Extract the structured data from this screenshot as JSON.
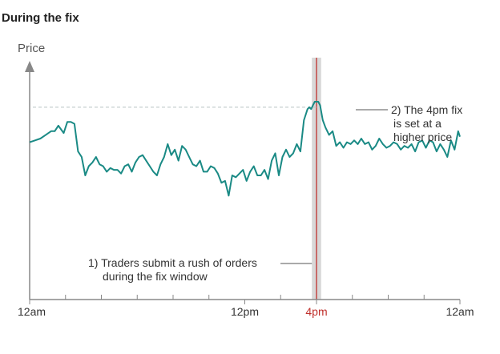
{
  "title": "During the fix",
  "chart_data": {
    "type": "line",
    "ylabel": "Price",
    "xlabel": "",
    "grid": false,
    "x_ticks": [
      {
        "label": "12am",
        "hour": 0,
        "highlight": false
      },
      {
        "label": "12pm",
        "hour": 12,
        "highlight": false
      },
      {
        "label": "4pm",
        "hour": 16,
        "highlight": true
      },
      {
        "label": "12am",
        "hour": 24,
        "highlight": false
      }
    ],
    "minor_tick_hours": [
      2,
      4,
      6,
      8,
      10,
      14,
      18,
      20,
      22
    ],
    "x_range": [
      0,
      24
    ],
    "fix_window": {
      "start_hour": 15.92,
      "end_hour": 16.08
    },
    "fix_time_hour": 16.0,
    "reference_level": 0.87,
    "series": [
      {
        "values_note": "",
        "x": [
          0,
          0.3,
          0.6,
          0.9,
          1.2,
          1.4,
          1.6,
          1.9,
          2.1,
          2.3,
          2.5,
          2.7,
          2.9,
          3.1,
          3.3,
          3.5,
          3.7,
          3.9,
          4.1,
          4.3,
          4.5,
          4.7,
          4.9,
          5.1,
          5.3,
          5.5,
          5.7,
          5.9,
          6.1,
          6.3,
          6.5,
          6.7,
          6.9,
          7.1,
          7.3,
          7.5,
          7.7,
          7.9,
          8.1,
          8.3,
          8.5,
          8.7,
          8.9,
          9.1,
          9.3,
          9.5,
          9.7,
          9.9,
          10.1,
          10.3,
          10.5,
          10.7,
          10.9,
          11.1,
          11.3,
          11.5,
          11.7,
          11.9,
          12.1,
          12.3,
          12.5,
          12.7,
          12.9,
          13.1,
          13.3,
          13.5,
          13.7,
          13.9,
          14.1,
          14.3,
          14.5,
          14.7,
          14.9,
          15.1,
          15.3,
          15.5,
          15.6,
          15.7,
          15.8,
          15.9,
          16.0,
          16.1,
          16.2,
          16.35,
          16.5,
          16.7,
          16.9,
          17.1,
          17.3,
          17.5,
          17.7,
          17.9,
          18.1,
          18.3,
          18.5,
          18.7,
          18.9,
          19.1,
          19.3,
          19.5,
          19.7,
          19.9,
          20.1,
          20.3,
          20.5,
          20.7,
          20.9,
          21.1,
          21.3,
          21.5,
          21.7,
          21.9,
          22.1,
          22.3,
          22.5,
          22.7,
          22.9,
          23.1,
          23.3,
          23.5,
          23.7,
          23.9,
          24.0
        ],
        "y": [
          0.68,
          0.69,
          0.7,
          0.72,
          0.74,
          0.74,
          0.77,
          0.73,
          0.79,
          0.79,
          0.78,
          0.63,
          0.6,
          0.5,
          0.55,
          0.57,
          0.6,
          0.56,
          0.55,
          0.52,
          0.54,
          0.53,
          0.53,
          0.51,
          0.55,
          0.56,
          0.52,
          0.57,
          0.6,
          0.61,
          0.58,
          0.55,
          0.52,
          0.5,
          0.56,
          0.6,
          0.67,
          0.61,
          0.64,
          0.58,
          0.66,
          0.64,
          0.6,
          0.56,
          0.55,
          0.58,
          0.52,
          0.52,
          0.55,
          0.54,
          0.51,
          0.46,
          0.47,
          0.39,
          0.5,
          0.49,
          0.51,
          0.53,
          0.47,
          0.52,
          0.55,
          0.5,
          0.5,
          0.53,
          0.48,
          0.58,
          0.62,
          0.5,
          0.6,
          0.64,
          0.6,
          0.62,
          0.67,
          0.63,
          0.8,
          0.86,
          0.87,
          0.86,
          0.88,
          0.9,
          0.9,
          0.9,
          0.88,
          0.8,
          0.76,
          0.72,
          0.74,
          0.66,
          0.68,
          0.65,
          0.68,
          0.67,
          0.69,
          0.67,
          0.7,
          0.67,
          0.68,
          0.64,
          0.66,
          0.7,
          0.67,
          0.65,
          0.66,
          0.68,
          0.67,
          0.64,
          0.66,
          0.65,
          0.67,
          0.63,
          0.68,
          0.69,
          0.65,
          0.69,
          0.68,
          0.63,
          0.67,
          0.64,
          0.6,
          0.69,
          0.64,
          0.74,
          0.71
        ],
        "ylim": [
          0.0,
          1.0
        ]
      }
    ],
    "annotations": [
      {
        "id": "fix-window",
        "lines": [
          "1) Traders submit a rush of orders",
          "during the fix window"
        ]
      },
      {
        "id": "fix-price",
        "lines": [
          "2) The 4pm fix",
          "is set at a",
          "higher price"
        ]
      }
    ],
    "colors": {
      "line": "#1a8a85",
      "fix_line": "#c0302c",
      "fix_band": "#d8d8d8",
      "axis": "#888888",
      "reference": "#b9c4c4",
      "highlight_text": "#c0302c"
    }
  }
}
